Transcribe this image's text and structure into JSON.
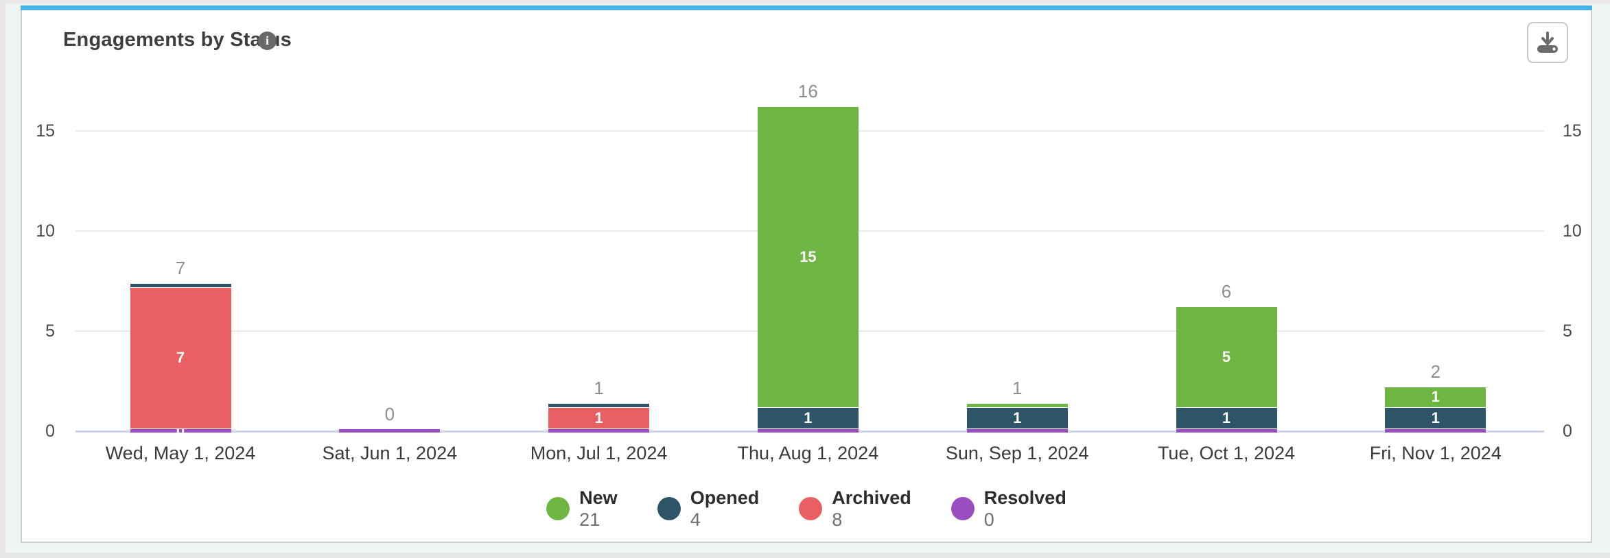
{
  "card": {
    "title": "Engagements by Status",
    "info_icon": "i",
    "accent_color": "#47b3e3"
  },
  "chart_data": {
    "type": "bar",
    "stacked": true,
    "title": "Engagements by Status",
    "categories": [
      "Wed, May 1, 2024",
      "Sat, Jun 1, 2024",
      "Mon, Jul 1, 2024",
      "Thu, Aug 1, 2024",
      "Sun, Sep 1, 2024",
      "Tue, Oct 1, 2024",
      "Fri, Nov 1, 2024"
    ],
    "series": [
      {
        "name": "New",
        "color": "#6eb544",
        "values": [
          0,
          0,
          0,
          15,
          0,
          5,
          1
        ],
        "legend_total": 21
      },
      {
        "name": "Opened",
        "color": "#2e5468",
        "values": [
          0,
          0,
          0,
          1,
          1,
          1,
          1
        ],
        "legend_total": 4
      },
      {
        "name": "Archived",
        "color": "#ea6062",
        "values": [
          7,
          0,
          1,
          0,
          0,
          0,
          0
        ],
        "legend_total": 8
      },
      {
        "name": "Resolved",
        "color": "#9b4ec1",
        "values": [
          0,
          0,
          0,
          0,
          0,
          0,
          0
        ],
        "legend_total": 0
      }
    ],
    "bar_totals": [
      7,
      0,
      1,
      16,
      1,
      6,
      2
    ],
    "y_ticks": [
      0,
      5,
      10,
      15
    ],
    "ylim": [
      0,
      16
    ],
    "grid": true,
    "legend_position": "bottom",
    "bars": [
      {
        "label": "Wed, May 1, 2024",
        "total": 7,
        "segments": [
          {
            "series": "Resolved",
            "value": 0,
            "label": "0"
          },
          {
            "series": "Archived",
            "value": 7,
            "label": "7"
          },
          {
            "series": "Opened",
            "value": 0
          }
        ]
      },
      {
        "label": "Sat, Jun 1, 2024",
        "total": 0,
        "segments": [
          {
            "series": "Resolved",
            "value": 0
          }
        ]
      },
      {
        "label": "Mon, Jul 1, 2024",
        "total": 1,
        "segments": [
          {
            "series": "Resolved",
            "value": 0
          },
          {
            "series": "Archived",
            "value": 1,
            "label": "1"
          },
          {
            "series": "Opened",
            "value": 0
          }
        ]
      },
      {
        "label": "Thu, Aug 1, 2024",
        "total": 16,
        "segments": [
          {
            "series": "Resolved",
            "value": 0
          },
          {
            "series": "Opened",
            "value": 1,
            "label": "1"
          },
          {
            "series": "New",
            "value": 15,
            "label": "15"
          }
        ]
      },
      {
        "label": "Sun, Sep 1, 2024",
        "total": 1,
        "segments": [
          {
            "series": "Resolved",
            "value": 0
          },
          {
            "series": "Opened",
            "value": 1,
            "label": "1"
          },
          {
            "series": "New",
            "value": 0
          }
        ]
      },
      {
        "label": "Tue, Oct 1, 2024",
        "total": 6,
        "segments": [
          {
            "series": "Resolved",
            "value": 0
          },
          {
            "series": "Opened",
            "value": 1,
            "label": "1"
          },
          {
            "series": "New",
            "value": 5,
            "label": "5"
          }
        ]
      },
      {
        "label": "Fri, Nov 1, 2024",
        "total": 2,
        "segments": [
          {
            "series": "Resolved",
            "value": 0
          },
          {
            "series": "Opened",
            "value": 1,
            "label": "1"
          },
          {
            "series": "New",
            "value": 1,
            "label": "1"
          }
        ]
      }
    ],
    "legend": [
      {
        "label": "New",
        "count": "21",
        "color": "#6eb544"
      },
      {
        "label": "Opened",
        "count": "4",
        "color": "#2e5468"
      },
      {
        "label": "Archived",
        "count": "8",
        "color": "#ea6062"
      },
      {
        "label": "Resolved",
        "count": "0",
        "color": "#9b4ec1"
      }
    ]
  }
}
